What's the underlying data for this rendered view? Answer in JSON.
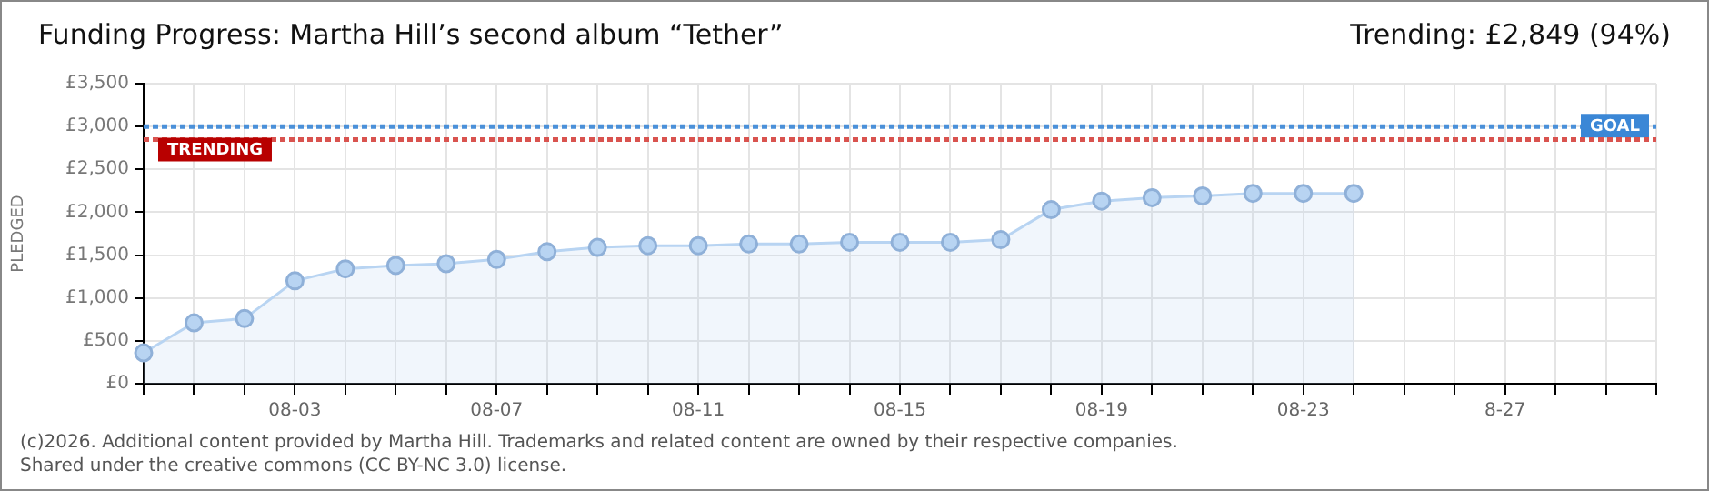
{
  "chart_data": {
    "type": "area",
    "title": "Funding Progress: Martha Hill’s second album “Tether”",
    "subtitle": "Trending: £2,849 (94%)",
    "ylabel": "PLEDGED",
    "categories": [
      null,
      null,
      null,
      "08-03",
      null,
      null,
      null,
      "08-07",
      null,
      null,
      null,
      "08-11",
      null,
      null,
      null,
      "08-15",
      null,
      null,
      null,
      "08-19",
      null,
      null,
      null,
      "08-23",
      null,
      null,
      null,
      "8-27",
      null,
      null,
      null
    ],
    "series": [
      {
        "color": "#b8d4f2",
        "values": [
          360,
          710,
          760,
          1200,
          1340,
          1380,
          1400,
          1450,
          1540,
          1590,
          1610,
          1610,
          1630,
          1630,
          1650,
          1650,
          1650,
          1680,
          2030,
          2130,
          2170,
          2190,
          2220,
          2220,
          2220,
          null,
          null,
          null,
          null,
          null,
          null
        ]
      }
    ],
    "ylim": [
      0,
      3500
    ],
    "yticks": [
      {
        "value": 0,
        "label": "£0"
      },
      {
        "value": 500,
        "label": "£500"
      },
      {
        "value": 1000,
        "label": "£1,000"
      },
      {
        "value": 1500,
        "label": "£1,500"
      },
      {
        "value": 2000,
        "label": "£2,000"
      },
      {
        "value": 2500,
        "label": "£2,500"
      },
      {
        "value": 3000,
        "label": "£3,000"
      },
      {
        "value": 3500,
        "label": "£3,500"
      }
    ],
    "ref_lines": [
      {
        "axis": "y",
        "value": 3000,
        "label": "GOAL",
        "color": "#4a90d9",
        "line_style": "dotted"
      },
      {
        "axis": "y",
        "value": 2849,
        "label": "TRENDING",
        "color": "#d9534f",
        "line_style": "dotted"
      }
    ],
    "annotations": [
      "(c)2026. Additional content provided by Martha Hill. Trademarks and related content are owned by their respective companies.",
      "Shared under the creative commons (CC BY-NC 3.0) license."
    ],
    "grid": true,
    "marker": "circle",
    "line_style": "solid",
    "legend": false
  }
}
